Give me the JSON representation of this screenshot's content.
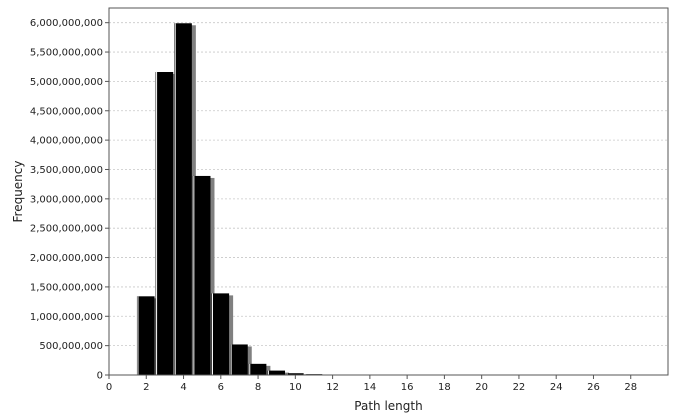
{
  "chart_data": {
    "type": "bar",
    "title": "",
    "xlabel": "Path length",
    "ylabel": "Frequency",
    "xlim": [
      0,
      30
    ],
    "ylim": [
      0,
      6250000000
    ],
    "x_ticks": [
      0,
      2,
      4,
      6,
      8,
      10,
      12,
      14,
      16,
      18,
      20,
      22,
      24,
      26,
      28
    ],
    "x_tick_labels": [
      "0",
      "2",
      "4",
      "6",
      "8",
      "10",
      "12",
      "14",
      "16",
      "18",
      "20",
      "22",
      "24",
      "26",
      "28"
    ],
    "y_ticks": [
      0,
      500000000,
      1000000000,
      1500000000,
      2000000000,
      2500000000,
      3000000000,
      3500000000,
      4000000000,
      4500000000,
      5000000000,
      5500000000,
      6000000000
    ],
    "y_tick_labels": [
      "0",
      "500,000,000",
      "1,000,000,000",
      "1,500,000,000",
      "2,000,000,000",
      "2,500,000,000",
      "3,000,000,000",
      "3,500,000,000",
      "4,000,000,000",
      "4,500,000,000",
      "5,000,000,000",
      "5,500,000,000",
      "6,000,000,000"
    ],
    "grid": true,
    "bar_color": "#000000",
    "bar_shadow_color": "#808080",
    "bars": [
      {
        "x": 2,
        "value": 1340000000
      },
      {
        "x": 3,
        "value": 5160000000
      },
      {
        "x": 4,
        "value": 5990000000
      },
      {
        "x": 5,
        "value": 3390000000
      },
      {
        "x": 6,
        "value": 1390000000
      },
      {
        "x": 7,
        "value": 520000000
      },
      {
        "x": 8,
        "value": 190000000
      },
      {
        "x": 9,
        "value": 75000000
      },
      {
        "x": 10,
        "value": 30000000
      },
      {
        "x": 11,
        "value": 14000000
      },
      {
        "x": 12,
        "value": 7000000
      },
      {
        "x": 13,
        "value": 4000000
      },
      {
        "x": 14,
        "value": 2000000
      },
      {
        "x": 15,
        "value": 1000000
      }
    ]
  }
}
